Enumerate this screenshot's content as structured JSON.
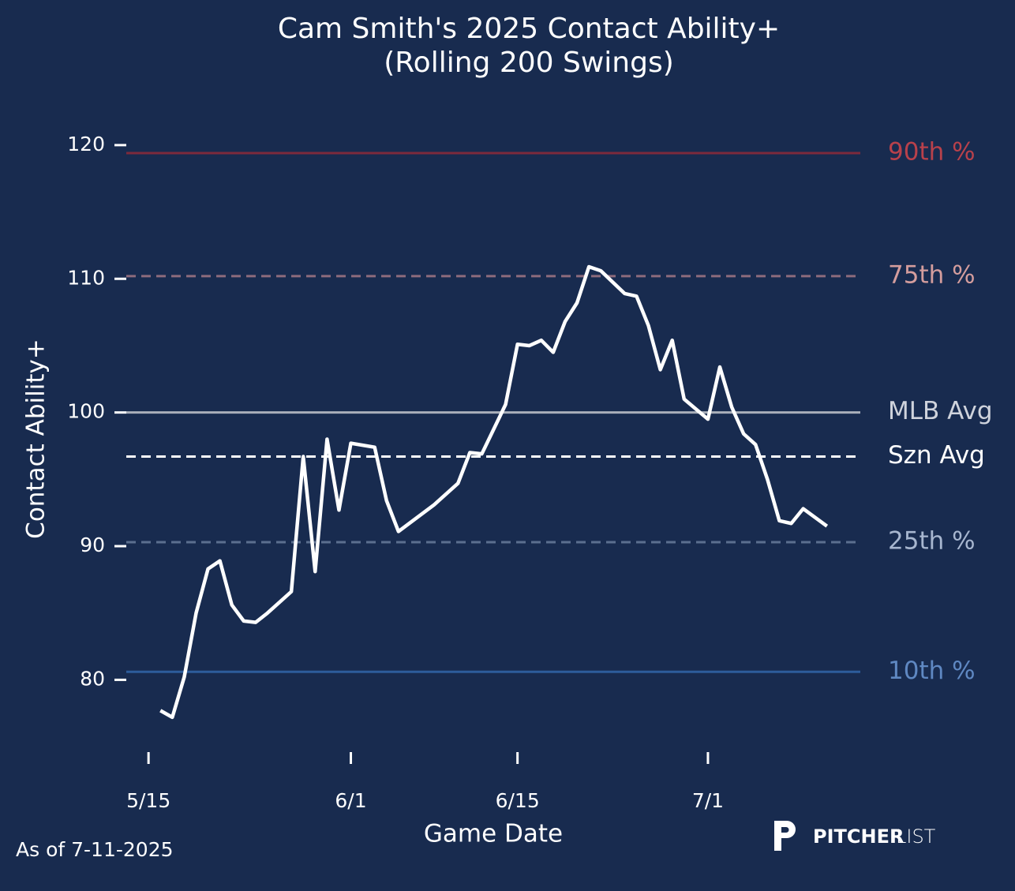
{
  "chart_data": {
    "type": "line",
    "title": "Cam Smith's 2025 Contact Ability+",
    "subtitle": "(Rolling 200 Swings)",
    "x_label": "Game Date",
    "y_label": "Contact Ability+",
    "footnote": "As of 7-11-2025",
    "logo": {
      "bold": "PITCHER",
      "light": "LIST"
    },
    "color": "#ffffff",
    "x": [
      "5/16",
      "5/17",
      "5/18",
      "5/19",
      "5/20",
      "5/21",
      "5/22",
      "5/23",
      "5/24",
      "5/25",
      "5/27",
      "5/28",
      "5/29",
      "5/30",
      "5/31",
      "6/1",
      "6/3",
      "6/4",
      "6/5",
      "6/8",
      "6/10",
      "6/11",
      "6/12",
      "6/14",
      "6/15",
      "6/16",
      "6/17",
      "6/18",
      "6/19",
      "6/20",
      "6/21",
      "6/22",
      "6/24",
      "6/25",
      "6/26",
      "6/27",
      "6/28",
      "6/29",
      "7/1",
      "7/2",
      "7/3",
      "7/4",
      "7/5",
      "7/6",
      "7/7",
      "7/8",
      "7/9",
      "7/11"
    ],
    "values": [
      77.7,
      77.2,
      80.2,
      85.0,
      88.3,
      88.9,
      85.6,
      84.4,
      84.3,
      85.0,
      86.6,
      96.7,
      88.1,
      98.0,
      92.7,
      97.7,
      97.4,
      93.4,
      91.1,
      93.1,
      94.7,
      97.0,
      96.9,
      100.6,
      105.1,
      105.0,
      105.4,
      104.5,
      106.8,
      108.2,
      110.9,
      110.6,
      108.9,
      108.7,
      106.5,
      103.2,
      105.4,
      101.0,
      99.5,
      103.4,
      100.4,
      98.4,
      97.6,
      95.0,
      91.9,
      91.7,
      92.8,
      91.5
    ],
    "xlim": [
      "5/13",
      "7/14"
    ],
    "xticks": [
      "5/15",
      "6/1",
      "6/15",
      "7/1"
    ],
    "ylim": [
      73,
      122
    ],
    "yticks": [
      80,
      90,
      100,
      110,
      120
    ],
    "reference_lines": [
      {
        "label": "90th %",
        "value": 119.4,
        "color": "#7c2a3c",
        "label_color": "#b8414b",
        "dashed": false
      },
      {
        "label": "75th %",
        "value": 110.2,
        "color": "#8c6b7c",
        "label_color": "#d49d9d",
        "dashed": true
      },
      {
        "label": "MLB Avg",
        "value": 100,
        "color": "#a9afba",
        "label_color": "#cfd3dc",
        "dashed": false
      },
      {
        "label": "Szn Avg",
        "value": 96.7,
        "color": "#ffffff",
        "label_color": "#ffffff",
        "dashed": true
      },
      {
        "label": "25th %",
        "value": 90.3,
        "color": "#5b6f8f",
        "label_color": "#a7b6cf",
        "dashed": true
      },
      {
        "label": "10th %",
        "value": 80.6,
        "color": "#2d5c9b",
        "label_color": "#5f88c2",
        "dashed": false
      }
    ]
  }
}
